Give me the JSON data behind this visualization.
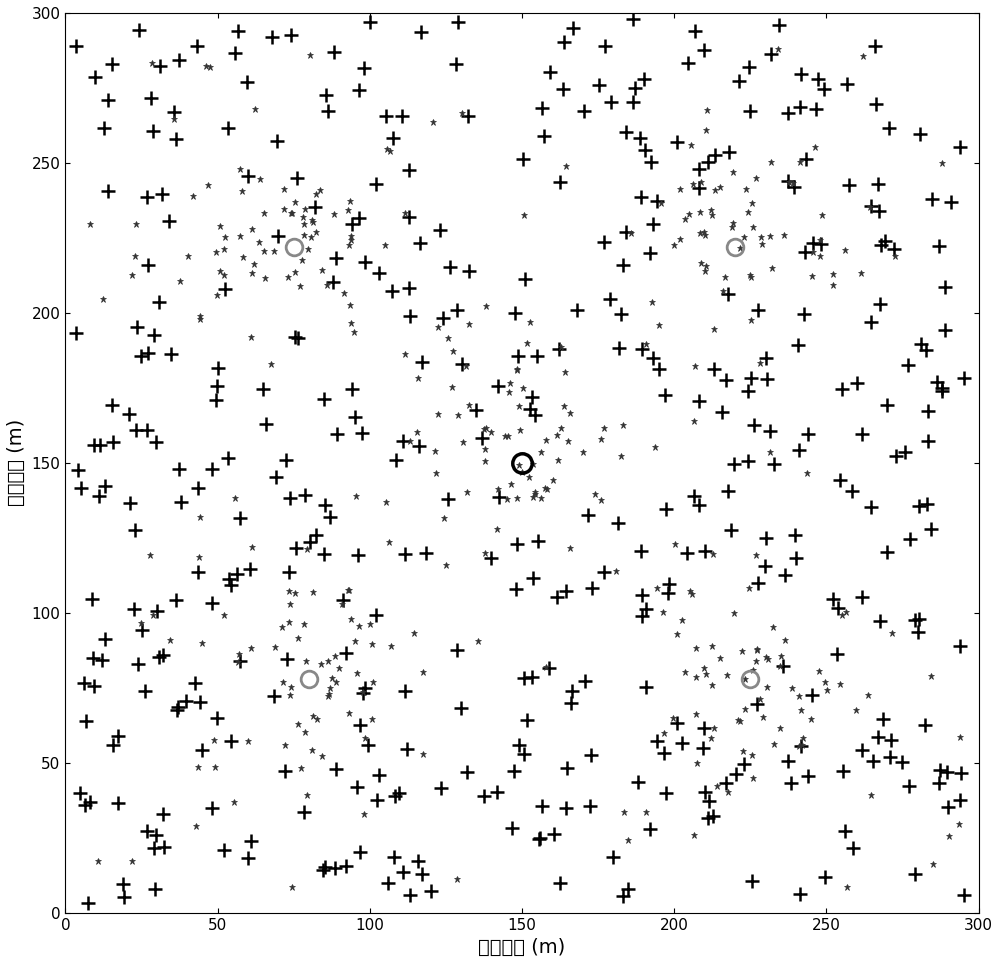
{
  "xlim": [
    0,
    300
  ],
  "ylim": [
    0,
    300
  ],
  "xlabel": "网络长度 (m)",
  "ylabel": "网络宽度 (m)",
  "xticks": [
    0,
    50,
    100,
    150,
    200,
    250,
    300
  ],
  "yticks": [
    0,
    50,
    100,
    150,
    200,
    250,
    300
  ],
  "figsize": [
    10.0,
    9.64
  ],
  "dpi": 100,
  "plus_color": "#000000",
  "star_color": "#333333",
  "circle_gray_color": "#888888",
  "big_circle_color": "#000000",
  "plus_markersize": 10,
  "star_markersize": 5,
  "circle_markersize": 12,
  "big_circle_markersize": 14,
  "random_seed": 42,
  "n_plus": 450,
  "n_star_per_cluster": 60,
  "n_star_scattered": 80,
  "circles": [
    [
      75,
      222
    ],
    [
      220,
      222
    ],
    [
      150,
      150
    ],
    [
      80,
      78
    ],
    [
      225,
      78
    ]
  ],
  "big_circle_idx": 2,
  "cluster_std": 18
}
